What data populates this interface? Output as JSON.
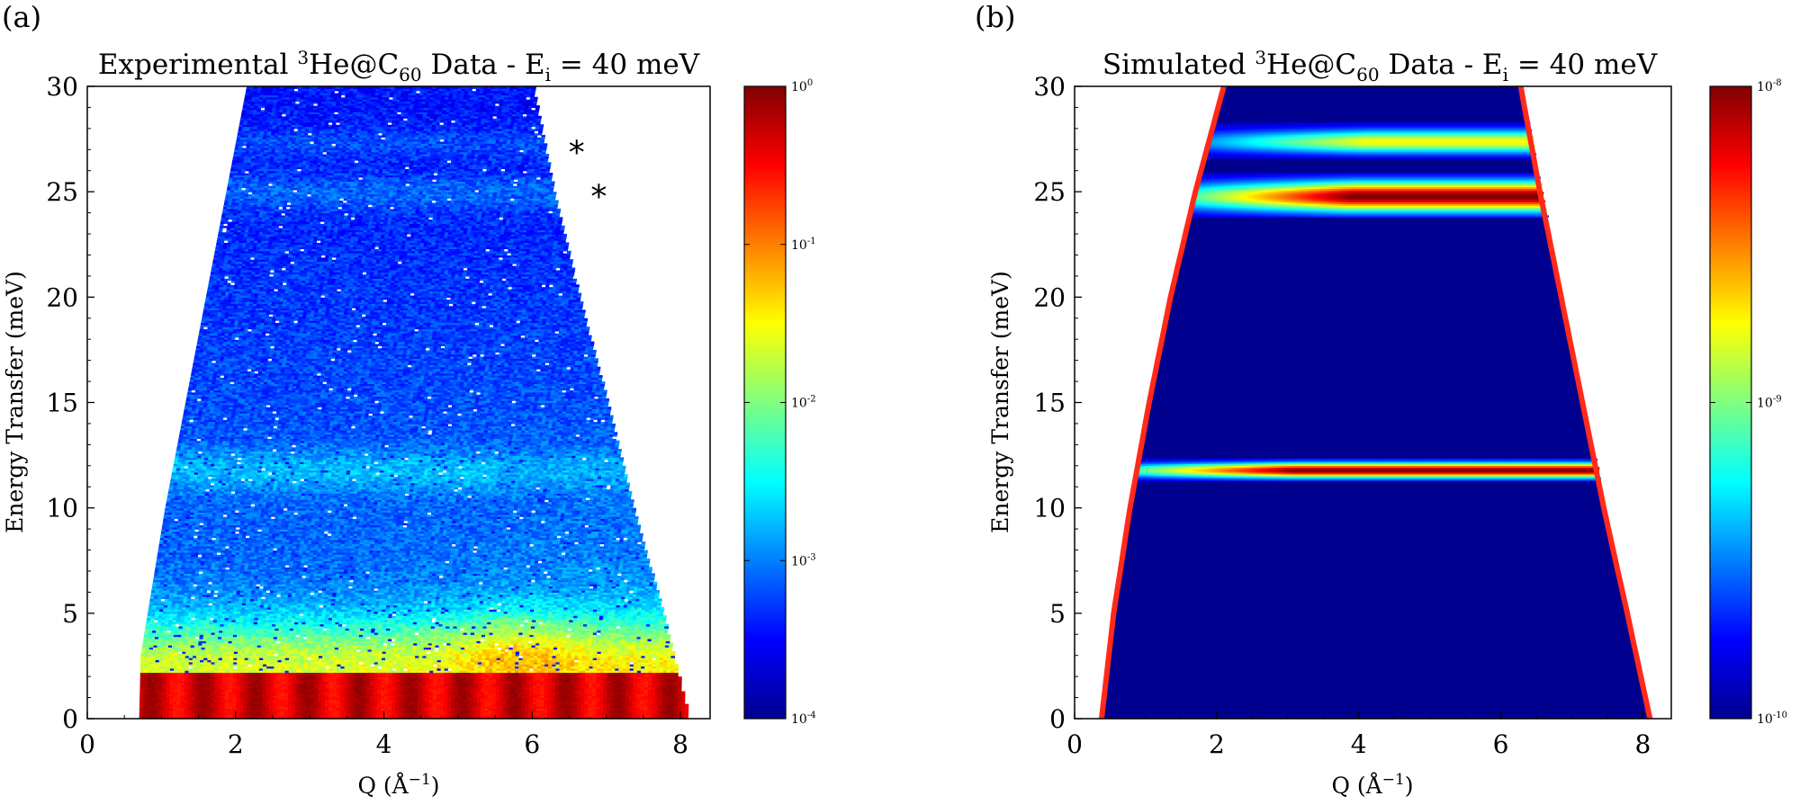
{
  "chart_data": [
    {
      "type": "heatmap",
      "panel_label": "(a)",
      "title": {
        "pre": "Experimental ",
        "sup": "3",
        "mid": "He@C",
        "sub": "60",
        "post": " Data - E",
        "sub2": "i",
        "post2": " = 40 meV"
      },
      "xlabel": {
        "pre": "Q (Å",
        "sup": "−1",
        "post": ")"
      },
      "ylabel": "Energy Transfer (meV)",
      "xlim": [
        0,
        8.4
      ],
      "ylim": [
        0,
        30
      ],
      "xticks": [
        0,
        2,
        4,
        6,
        8
      ],
      "yticks": [
        0,
        5,
        10,
        15,
        20,
        25,
        30
      ],
      "colorscale": "jet",
      "color_scale_type": "log",
      "colorbar_ticks": [
        {
          "base": "10",
          "exp": "-4",
          "value": 0.0001
        },
        {
          "base": "10",
          "exp": "-3",
          "value": 0.001
        },
        {
          "base": "10",
          "exp": "-2",
          "value": 0.01
        },
        {
          "base": "10",
          "exp": "-1",
          "value": 0.1
        },
        {
          "base": "10",
          "exp": "0",
          "value": 1
        }
      ],
      "kinematic_limits": {
        "qmin": [
          [
            0,
            0.7
          ],
          [
            3,
            0.72
          ],
          [
            10,
            1.05
          ],
          [
            20,
            1.6
          ],
          [
            30,
            2.15
          ]
        ],
        "qmax": [
          [
            0,
            8.1
          ],
          [
            5,
            7.75
          ],
          [
            10,
            7.35
          ],
          [
            15,
            7.0
          ],
          [
            20,
            6.62
          ],
          [
            25,
            6.28
          ],
          [
            30,
            6.0
          ]
        ]
      },
      "features": [
        {
          "name": "elastic line",
          "E_range": [
            0,
            2.2
          ]
        },
        {
          "name": "broad inelastic peak",
          "Q": 5.8,
          "E": 3.5
        },
        {
          "name": "inelastic band",
          "E": 11.8
        },
        {
          "name": "inelastic band",
          "E": 25.0
        },
        {
          "name": "inelastic band",
          "E": 27.3
        }
      ],
      "annotations": [
        {
          "text": "*",
          "Q": 6.6,
          "E": 27.3
        },
        {
          "text": "*",
          "Q": 6.9,
          "E": 25.2
        }
      ]
    },
    {
      "type": "heatmap",
      "panel_label": "(b)",
      "title": {
        "pre": "Simulated ",
        "sup": "3",
        "mid": "He@C",
        "sub": "60",
        "post": " Data - E",
        "sub2": "i",
        "post2": " = 40 meV"
      },
      "xlabel": {
        "pre": "Q (Å",
        "sup": "−1",
        "post": ")"
      },
      "ylabel": "Energy Transfer (meV)",
      "xlim": [
        0,
        8.4
      ],
      "ylim": [
        0,
        30
      ],
      "xticks": [
        0,
        2,
        4,
        6,
        8
      ],
      "yticks": [
        0,
        5,
        10,
        15,
        20,
        25,
        30
      ],
      "colorscale": "jet",
      "color_scale_type": "log",
      "colorbar_ticks": [
        {
          "base": "10",
          "exp": "-10",
          "value": 1e-10
        },
        {
          "base": "10",
          "exp": "-9",
          "value": 1e-09
        },
        {
          "base": "10",
          "exp": "-8",
          "value": 1e-08
        }
      ],
      "kinematic_limits": {
        "qmin": [
          [
            0,
            0.38
          ],
          [
            5,
            0.55
          ],
          [
            10,
            0.78
          ],
          [
            15,
            1.05
          ],
          [
            20,
            1.35
          ],
          [
            25,
            1.7
          ],
          [
            30,
            2.1
          ]
        ],
        "qmax": [
          [
            0,
            8.1
          ],
          [
            5,
            7.78
          ],
          [
            10,
            7.45
          ],
          [
            15,
            7.15
          ],
          [
            20,
            6.85
          ],
          [
            25,
            6.55
          ],
          [
            30,
            6.28
          ]
        ]
      },
      "boundary_color": "#ff2a1a",
      "background_color": "#00008f",
      "bands": [
        {
          "E": 11.8,
          "half_width": 0.5,
          "peak": 1.0
        },
        {
          "E": 24.8,
          "half_width": 1.0,
          "peak": 1.0
        },
        {
          "E": 27.4,
          "half_width": 0.8,
          "peak": 0.62
        }
      ]
    }
  ]
}
